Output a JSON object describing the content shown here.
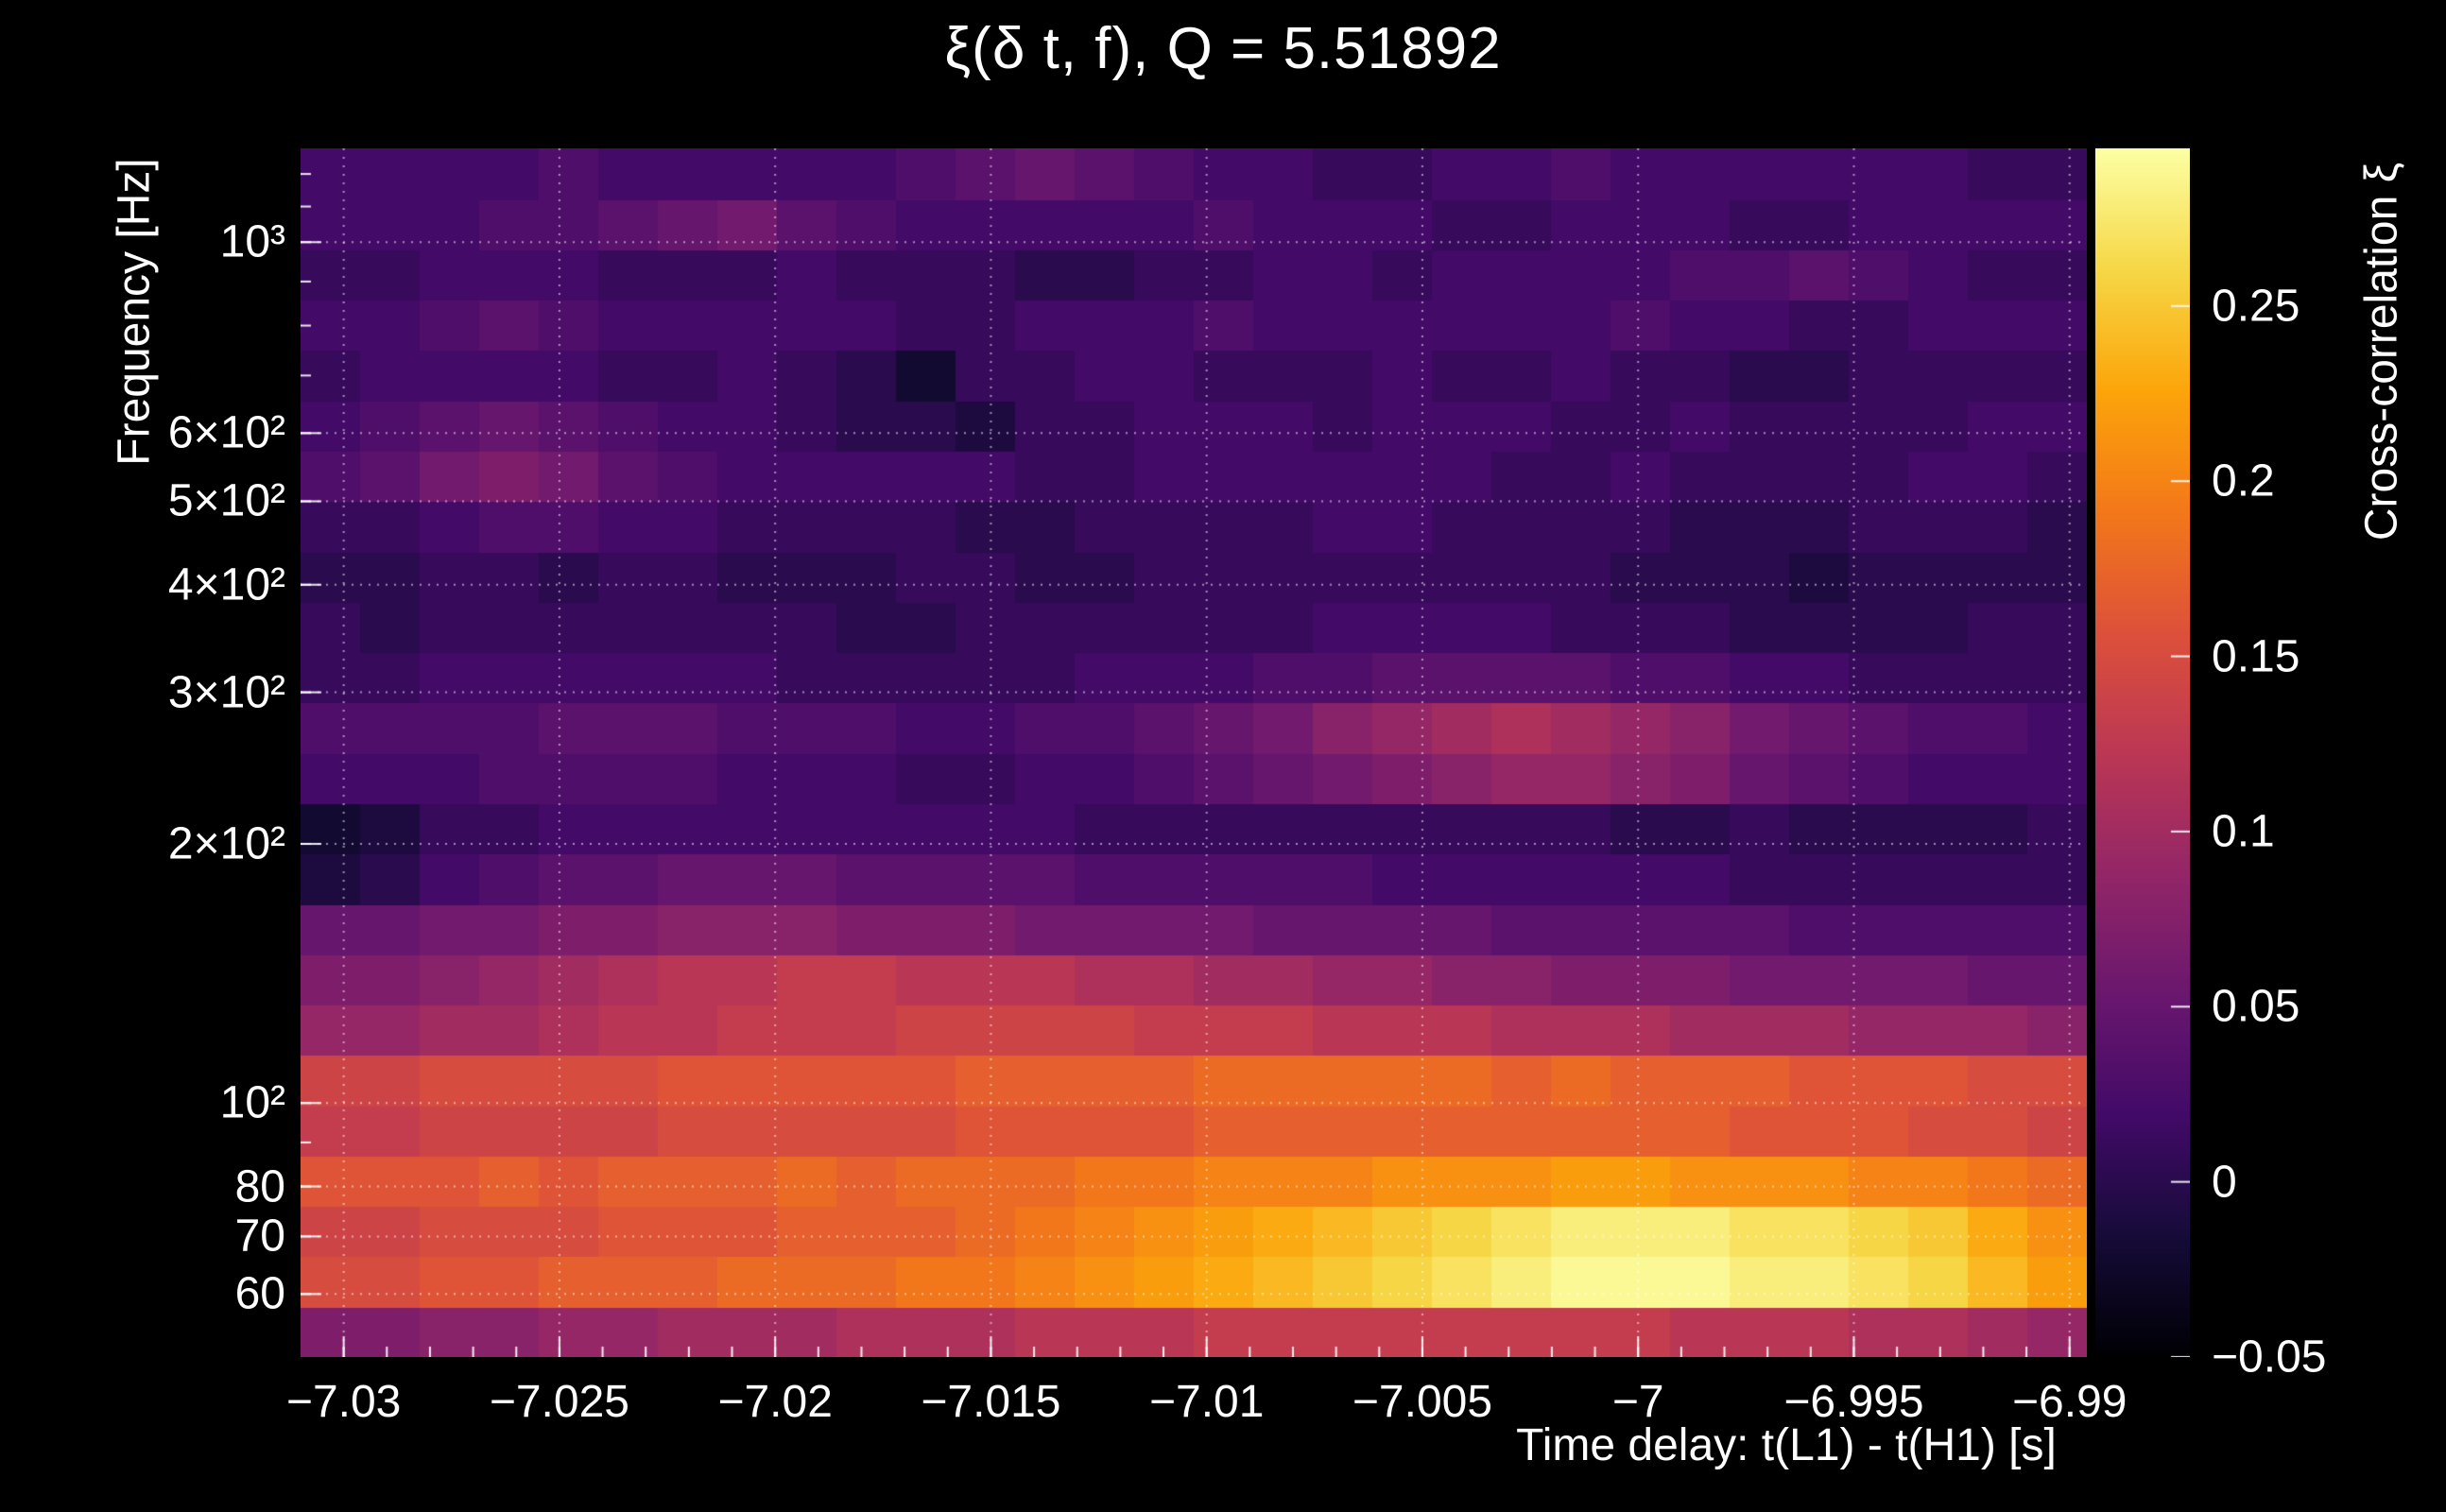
{
  "colors": {
    "background": "#000000",
    "text": "#ffffff",
    "grid": "#ffffff"
  },
  "chart_data": {
    "type": "heatmap",
    "title": "ξ(δ t, f), Q = 5.51892",
    "xlabel": "Time delay: t(L1) - t(H1) [s]",
    "ylabel": "Frequency [Hz]",
    "colorbar_label": "Cross-correlation ξ",
    "x_range": [
      -7.031,
      -6.9896
    ],
    "y_range_hz": [
      50.7,
      1285.1
    ],
    "y_scale": "log",
    "value_range": [
      -0.05,
      0.295
    ],
    "grid": "dotted",
    "legend_position": "right-colorbar",
    "x_ticks": [
      {
        "value": -7.03,
        "label": "−7.03"
      },
      {
        "value": -7.025,
        "label": "−7.025"
      },
      {
        "value": -7.02,
        "label": "−7.02"
      },
      {
        "value": -7.015,
        "label": "−7.015"
      },
      {
        "value": -7.01,
        "label": "−7.01"
      },
      {
        "value": -7.005,
        "label": "−7.005"
      },
      {
        "value": -7.0,
        "label": "−7"
      },
      {
        "value": -6.995,
        "label": "−6.995"
      },
      {
        "value": -6.99,
        "label": "−6.99"
      }
    ],
    "y_ticks": [
      {
        "value": 1000,
        "label": "10³"
      },
      {
        "value": 600,
        "label": "6×10²"
      },
      {
        "value": 500,
        "label": "5×10²"
      },
      {
        "value": 400,
        "label": "4×10²"
      },
      {
        "value": 300,
        "label": "3×10²"
      },
      {
        "value": 200,
        "label": "2×10²"
      },
      {
        "value": 100,
        "label": "10²"
      },
      {
        "value": 80,
        "label": "80"
      },
      {
        "value": 70,
        "label": "70"
      },
      {
        "value": 60,
        "label": "60"
      }
    ],
    "colorbar_ticks": [
      {
        "value": 0.25,
        "label": "0.25"
      },
      {
        "value": 0.2,
        "label": "0.2"
      },
      {
        "value": 0.15,
        "label": "0.15"
      },
      {
        "value": 0.1,
        "label": "0.1"
      },
      {
        "value": 0.05,
        "label": "0.05"
      },
      {
        "value": 0,
        "label": "0"
      },
      {
        "value": -0.05,
        "label": "−0.05"
      }
    ],
    "colormap": "inferno",
    "colormap_stops": [
      [
        0.0,
        [
          0,
          0,
          4
        ]
      ],
      [
        0.1,
        [
          22,
          11,
          57
        ]
      ],
      [
        0.2,
        [
          66,
          10,
          104
        ]
      ],
      [
        0.3,
        [
          106,
          23,
          110
        ]
      ],
      [
        0.4,
        [
          147,
          38,
          103
        ]
      ],
      [
        0.5,
        [
          188,
          55,
          84
        ]
      ],
      [
        0.6,
        [
          221,
          81,
          58
        ]
      ],
      [
        0.7,
        [
          243,
          120,
          25
        ]
      ],
      [
        0.8,
        [
          252,
          165,
          10
        ]
      ],
      [
        0.9,
        [
          246,
          215,
          70
        ]
      ],
      [
        1.0,
        [
          252,
          255,
          164
        ]
      ]
    ],
    "n_rows": 24,
    "n_cols": 30,
    "row_freq_edges": [
      50.7,
      58.0,
      66.4,
      75.9,
      86.9,
      99.4,
      113.8,
      130.2,
      148.9,
      170.4,
      195.0,
      223.1,
      255.3,
      292.1,
      334.2,
      382.4,
      437.5,
      500.6,
      572.8,
      655.4,
      749.9,
      858.0,
      981.7,
      1123.2,
      1285.1
    ],
    "values": [
      [
        0.07,
        0.07,
        0.08,
        0.08,
        0.09,
        0.09,
        0.1,
        0.1,
        0.1,
        0.11,
        0.11,
        0.11,
        0.12,
        0.12,
        0.12,
        0.13,
        0.13,
        0.13,
        0.13,
        0.13,
        0.13,
        0.13,
        0.13,
        0.12,
        0.12,
        0.12,
        0.11,
        0.11,
        0.1,
        0.09
      ],
      [
        0.15,
        0.15,
        0.16,
        0.16,
        0.17,
        0.17,
        0.17,
        0.18,
        0.18,
        0.18,
        0.19,
        0.19,
        0.2,
        0.21,
        0.22,
        0.23,
        0.24,
        0.25,
        0.26,
        0.27,
        0.28,
        0.29,
        0.29,
        0.29,
        0.28,
        0.28,
        0.27,
        0.26,
        0.24,
        0.22
      ],
      [
        0.14,
        0.14,
        0.15,
        0.15,
        0.15,
        0.16,
        0.16,
        0.16,
        0.17,
        0.17,
        0.17,
        0.18,
        0.19,
        0.2,
        0.21,
        0.22,
        0.23,
        0.24,
        0.25,
        0.26,
        0.27,
        0.28,
        0.28,
        0.28,
        0.27,
        0.27,
        0.26,
        0.25,
        0.23,
        0.21
      ],
      [
        0.16,
        0.16,
        0.16,
        0.17,
        0.16,
        0.17,
        0.17,
        0.17,
        0.18,
        0.17,
        0.18,
        0.18,
        0.18,
        0.19,
        0.19,
        0.2,
        0.2,
        0.2,
        0.21,
        0.21,
        0.21,
        0.22,
        0.22,
        0.21,
        0.21,
        0.21,
        0.2,
        0.2,
        0.19,
        0.18
      ],
      [
        0.13,
        0.13,
        0.14,
        0.14,
        0.14,
        0.14,
        0.15,
        0.15,
        0.15,
        0.15,
        0.15,
        0.16,
        0.16,
        0.16,
        0.16,
        0.17,
        0.17,
        0.17,
        0.17,
        0.17,
        0.17,
        0.17,
        0.17,
        0.17,
        0.16,
        0.16,
        0.16,
        0.15,
        0.15,
        0.14
      ],
      [
        0.14,
        0.14,
        0.15,
        0.15,
        0.15,
        0.15,
        0.16,
        0.16,
        0.16,
        0.16,
        0.16,
        0.17,
        0.17,
        0.17,
        0.17,
        0.18,
        0.18,
        0.18,
        0.18,
        0.18,
        0.17,
        0.18,
        0.17,
        0.17,
        0.17,
        0.16,
        0.16,
        0.16,
        0.15,
        0.15
      ],
      [
        0.09,
        0.09,
        0.1,
        0.1,
        0.11,
        0.12,
        0.12,
        0.13,
        0.13,
        0.13,
        0.14,
        0.14,
        0.14,
        0.14,
        0.13,
        0.13,
        0.13,
        0.12,
        0.12,
        0.12,
        0.11,
        0.11,
        0.11,
        0.1,
        0.1,
        0.1,
        0.09,
        0.09,
        0.09,
        0.08
      ],
      [
        0.07,
        0.07,
        0.08,
        0.09,
        0.1,
        0.11,
        0.12,
        0.12,
        0.13,
        0.13,
        0.12,
        0.12,
        0.12,
        0.11,
        0.11,
        0.1,
        0.1,
        0.09,
        0.09,
        0.08,
        0.08,
        0.07,
        0.07,
        0.07,
        0.06,
        0.06,
        0.06,
        0.06,
        0.05,
        0.05
      ],
      [
        0.05,
        0.05,
        0.06,
        0.06,
        0.07,
        0.07,
        0.08,
        0.08,
        0.08,
        0.07,
        0.07,
        0.07,
        0.06,
        0.06,
        0.06,
        0.06,
        0.05,
        0.05,
        0.05,
        0.05,
        0.04,
        0.04,
        0.04,
        0.04,
        0.04,
        0.03,
        0.03,
        0.03,
        0.03,
        0.03
      ],
      [
        -0.01,
        0.0,
        0.02,
        0.03,
        0.04,
        0.04,
        0.05,
        0.05,
        0.05,
        0.04,
        0.04,
        0.04,
        0.04,
        0.03,
        0.03,
        0.03,
        0.03,
        0.03,
        0.02,
        0.02,
        0.02,
        0.02,
        0.02,
        0.02,
        0.01,
        0.01,
        0.01,
        0.01,
        0.01,
        0.01
      ],
      [
        -0.02,
        -0.01,
        0.01,
        0.01,
        0.02,
        0.02,
        0.02,
        0.02,
        0.02,
        0.02,
        0.02,
        0.02,
        0.02,
        0.01,
        0.01,
        0.01,
        0.01,
        0.01,
        0.01,
        0.01,
        0.01,
        0.01,
        0.0,
        0.0,
        0.01,
        0.0,
        0.0,
        0.0,
        0.0,
        0.01
      ],
      [
        0.02,
        0.02,
        0.02,
        0.03,
        0.03,
        0.03,
        0.03,
        0.02,
        0.02,
        0.02,
        0.01,
        0.01,
        0.02,
        0.02,
        0.03,
        0.04,
        0.05,
        0.06,
        0.07,
        0.08,
        0.09,
        0.09,
        0.08,
        0.07,
        0.05,
        0.04,
        0.03,
        0.02,
        0.02,
        0.02
      ],
      [
        0.03,
        0.03,
        0.03,
        0.03,
        0.04,
        0.04,
        0.04,
        0.03,
        0.03,
        0.03,
        0.02,
        0.02,
        0.03,
        0.03,
        0.04,
        0.05,
        0.06,
        0.08,
        0.09,
        0.1,
        0.11,
        0.1,
        0.09,
        0.08,
        0.06,
        0.05,
        0.04,
        0.03,
        0.03,
        0.02
      ],
      [
        0.01,
        0.01,
        0.02,
        0.02,
        0.02,
        0.02,
        0.02,
        0.02,
        0.01,
        0.01,
        0.01,
        0.01,
        0.01,
        0.02,
        0.02,
        0.02,
        0.03,
        0.03,
        0.04,
        0.04,
        0.04,
        0.04,
        0.03,
        0.03,
        0.02,
        0.02,
        0.01,
        0.01,
        0.01,
        0.01
      ],
      [
        0.01,
        0.0,
        0.01,
        0.01,
        0.01,
        0.01,
        0.01,
        0.01,
        0.01,
        0.0,
        0.0,
        0.01,
        0.01,
        0.01,
        0.01,
        0.01,
        0.01,
        0.02,
        0.02,
        0.02,
        0.02,
        0.01,
        0.01,
        0.01,
        0.0,
        0.0,
        0.0,
        0.0,
        0.01,
        0.01
      ],
      [
        0.0,
        0.0,
        0.01,
        0.01,
        0.0,
        0.01,
        0.01,
        0.0,
        0.0,
        0.0,
        0.01,
        0.01,
        0.0,
        0.0,
        0.01,
        0.01,
        0.01,
        0.01,
        0.01,
        0.01,
        0.01,
        0.01,
        0.0,
        0.0,
        0.0,
        -0.01,
        0.0,
        0.0,
        0.0,
        0.0
      ],
      [
        0.01,
        0.01,
        0.02,
        0.03,
        0.03,
        0.02,
        0.02,
        0.01,
        0.01,
        0.01,
        0.01,
        0.0,
        0.0,
        0.01,
        0.01,
        0.01,
        0.01,
        0.02,
        0.02,
        0.01,
        0.01,
        0.01,
        0.01,
        0.0,
        0.0,
        0.0,
        0.01,
        0.01,
        0.01,
        0.0
      ],
      [
        0.03,
        0.04,
        0.06,
        0.07,
        0.06,
        0.04,
        0.03,
        0.02,
        0.02,
        0.02,
        0.02,
        0.02,
        0.01,
        0.01,
        0.02,
        0.02,
        0.02,
        0.02,
        0.02,
        0.02,
        0.01,
        0.01,
        0.02,
        0.01,
        0.01,
        0.01,
        0.01,
        0.02,
        0.02,
        0.01
      ],
      [
        0.02,
        0.03,
        0.04,
        0.05,
        0.04,
        0.03,
        0.02,
        0.02,
        0.01,
        0.0,
        0.0,
        -0.01,
        0.01,
        0.01,
        0.02,
        0.02,
        0.02,
        0.01,
        0.02,
        0.02,
        0.02,
        0.01,
        0.01,
        0.02,
        0.01,
        0.01,
        0.01,
        0.01,
        0.02,
        0.02
      ],
      [
        0.01,
        0.02,
        0.02,
        0.02,
        0.02,
        0.01,
        0.01,
        0.02,
        0.01,
        0.0,
        -0.02,
        0.01,
        0.01,
        0.02,
        0.02,
        0.01,
        0.01,
        0.01,
        0.02,
        0.01,
        0.01,
        0.02,
        0.01,
        0.01,
        0.0,
        0.0,
        0.01,
        0.01,
        0.01,
        0.01
      ],
      [
        0.02,
        0.02,
        0.03,
        0.04,
        0.03,
        0.02,
        0.02,
        0.02,
        0.02,
        0.02,
        0.01,
        0.01,
        0.02,
        0.02,
        0.02,
        0.03,
        0.02,
        0.02,
        0.02,
        0.02,
        0.02,
        0.02,
        0.03,
        0.02,
        0.02,
        0.01,
        0.01,
        0.02,
        0.02,
        0.02
      ],
      [
        0.01,
        0.01,
        0.02,
        0.02,
        0.02,
        0.01,
        0.01,
        0.01,
        0.02,
        0.01,
        0.01,
        0.01,
        0.0,
        0.0,
        0.01,
        0.01,
        0.02,
        0.02,
        0.01,
        0.02,
        0.02,
        0.02,
        0.02,
        0.03,
        0.03,
        0.04,
        0.03,
        0.02,
        0.01,
        0.01
      ],
      [
        0.02,
        0.02,
        0.02,
        0.03,
        0.03,
        0.04,
        0.05,
        0.06,
        0.04,
        0.03,
        0.02,
        0.02,
        0.02,
        0.02,
        0.02,
        0.03,
        0.02,
        0.02,
        0.02,
        0.01,
        0.01,
        0.02,
        0.02,
        0.02,
        0.01,
        0.01,
        0.02,
        0.02,
        0.02,
        0.02
      ],
      [
        0.02,
        0.02,
        0.02,
        0.02,
        0.03,
        0.02,
        0.02,
        0.02,
        0.02,
        0.02,
        0.03,
        0.04,
        0.05,
        0.04,
        0.03,
        0.02,
        0.02,
        0.01,
        0.01,
        0.02,
        0.02,
        0.03,
        0.02,
        0.02,
        0.02,
        0.02,
        0.02,
        0.02,
        0.01,
        0.01
      ]
    ]
  }
}
